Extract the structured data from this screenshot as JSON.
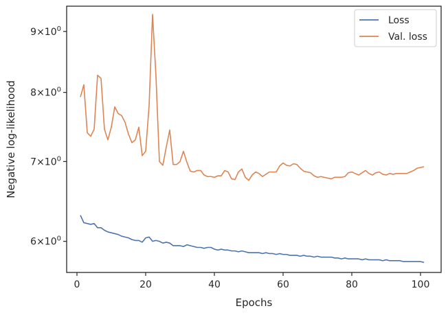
{
  "chart_data": {
    "type": "line",
    "xlabel": "Epochs",
    "ylabel": "Negative log-likelihood",
    "yscale": "log",
    "xlim": [
      -3,
      106
    ],
    "ylim": [
      5.65,
      9.45
    ],
    "x_ticks": [
      0,
      20,
      40,
      60,
      80,
      100
    ],
    "y_ticks": [
      {
        "value": 6,
        "mantissa": "6",
        "base": "10",
        "exp": "0"
      },
      {
        "value": 7,
        "mantissa": "7",
        "base": "10",
        "exp": "0"
      },
      {
        "value": 8,
        "mantissa": "8",
        "base": "10",
        "exp": "0"
      },
      {
        "value": 9,
        "mantissa": "9",
        "base": "10",
        "exp": "0"
      }
    ],
    "grid": false,
    "legend_position": "top-right",
    "series": [
      {
        "name": "Loss",
        "color": "#4c72b0",
        "x": [
          1,
          2,
          3,
          4,
          5,
          6,
          7,
          8,
          9,
          10,
          11,
          12,
          13,
          14,
          15,
          16,
          17,
          18,
          19,
          20,
          21,
          22,
          23,
          24,
          25,
          26,
          27,
          28,
          29,
          30,
          31,
          32,
          33,
          34,
          35,
          36,
          37,
          38,
          39,
          40,
          41,
          42,
          43,
          44,
          45,
          46,
          47,
          48,
          49,
          50,
          51,
          52,
          53,
          54,
          55,
          56,
          57,
          58,
          59,
          60,
          61,
          62,
          63,
          64,
          65,
          66,
          67,
          68,
          69,
          70,
          71,
          72,
          73,
          74,
          75,
          76,
          77,
          78,
          79,
          80,
          81,
          82,
          83,
          84,
          85,
          86,
          87,
          88,
          89,
          90,
          91,
          92,
          93,
          94,
          95,
          96,
          97,
          98,
          99,
          100,
          101
        ],
        "y": [
          6.31,
          6.22,
          6.21,
          6.2,
          6.21,
          6.16,
          6.16,
          6.13,
          6.11,
          6.1,
          6.09,
          6.08,
          6.06,
          6.05,
          6.04,
          6.02,
          6.01,
          6.01,
          5.99,
          6.04,
          6.05,
          6.0,
          6.01,
          6.0,
          5.98,
          5.99,
          5.98,
          5.95,
          5.95,
          5.95,
          5.94,
          5.96,
          5.95,
          5.94,
          5.93,
          5.93,
          5.92,
          5.93,
          5.93,
          5.91,
          5.9,
          5.91,
          5.9,
          5.9,
          5.89,
          5.89,
          5.88,
          5.89,
          5.88,
          5.87,
          5.87,
          5.87,
          5.87,
          5.86,
          5.87,
          5.86,
          5.86,
          5.85,
          5.86,
          5.85,
          5.85,
          5.84,
          5.84,
          5.84,
          5.83,
          5.84,
          5.83,
          5.83,
          5.82,
          5.83,
          5.82,
          5.82,
          5.82,
          5.82,
          5.81,
          5.81,
          5.8,
          5.81,
          5.8,
          5.8,
          5.8,
          5.8,
          5.79,
          5.8,
          5.79,
          5.79,
          5.79,
          5.79,
          5.78,
          5.79,
          5.78,
          5.78,
          5.78,
          5.78,
          5.77,
          5.77,
          5.77,
          5.77,
          5.77,
          5.77,
          5.76
        ]
      },
      {
        "name": "Val. loss",
        "color": "#dd8452",
        "x": [
          1,
          2,
          3,
          4,
          5,
          6,
          7,
          8,
          9,
          10,
          11,
          12,
          13,
          14,
          15,
          16,
          17,
          18,
          19,
          20,
          21,
          22,
          23,
          24,
          25,
          26,
          27,
          28,
          29,
          30,
          31,
          32,
          33,
          34,
          35,
          36,
          37,
          38,
          39,
          40,
          41,
          42,
          43,
          44,
          45,
          46,
          47,
          48,
          49,
          50,
          51,
          52,
          53,
          54,
          55,
          56,
          57,
          58,
          59,
          60,
          61,
          62,
          63,
          64,
          65,
          66,
          67,
          68,
          69,
          70,
          71,
          72,
          73,
          74,
          75,
          76,
          77,
          78,
          79,
          80,
          81,
          82,
          83,
          84,
          85,
          86,
          87,
          88,
          89,
          90,
          91,
          92,
          93,
          94,
          95,
          96,
          97,
          98,
          99,
          100,
          101
        ],
        "y": [
          7.93,
          8.12,
          7.4,
          7.35,
          7.45,
          8.27,
          8.22,
          7.45,
          7.3,
          7.48,
          7.78,
          7.68,
          7.65,
          7.55,
          7.38,
          7.26,
          7.3,
          7.48,
          7.08,
          7.14,
          7.8,
          9.3,
          8.25,
          7.0,
          6.95,
          7.2,
          7.44,
          6.96,
          6.96,
          7.0,
          7.14,
          6.99,
          6.87,
          6.86,
          6.88,
          6.88,
          6.82,
          6.8,
          6.8,
          6.79,
          6.81,
          6.81,
          6.88,
          6.86,
          6.77,
          6.76,
          6.86,
          6.9,
          6.79,
          6.75,
          6.82,
          6.86,
          6.84,
          6.8,
          6.83,
          6.86,
          6.86,
          6.86,
          6.94,
          6.98,
          6.95,
          6.94,
          6.97,
          6.96,
          6.91,
          6.87,
          6.86,
          6.85,
          6.81,
          6.79,
          6.8,
          6.79,
          6.78,
          6.77,
          6.79,
          6.79,
          6.79,
          6.8,
          6.85,
          6.86,
          6.84,
          6.82,
          6.85,
          6.88,
          6.84,
          6.82,
          6.85,
          6.86,
          6.83,
          6.82,
          6.84,
          6.83,
          6.84,
          6.84,
          6.84,
          6.84,
          6.86,
          6.88,
          6.91,
          6.92,
          6.93
        ]
      }
    ]
  }
}
